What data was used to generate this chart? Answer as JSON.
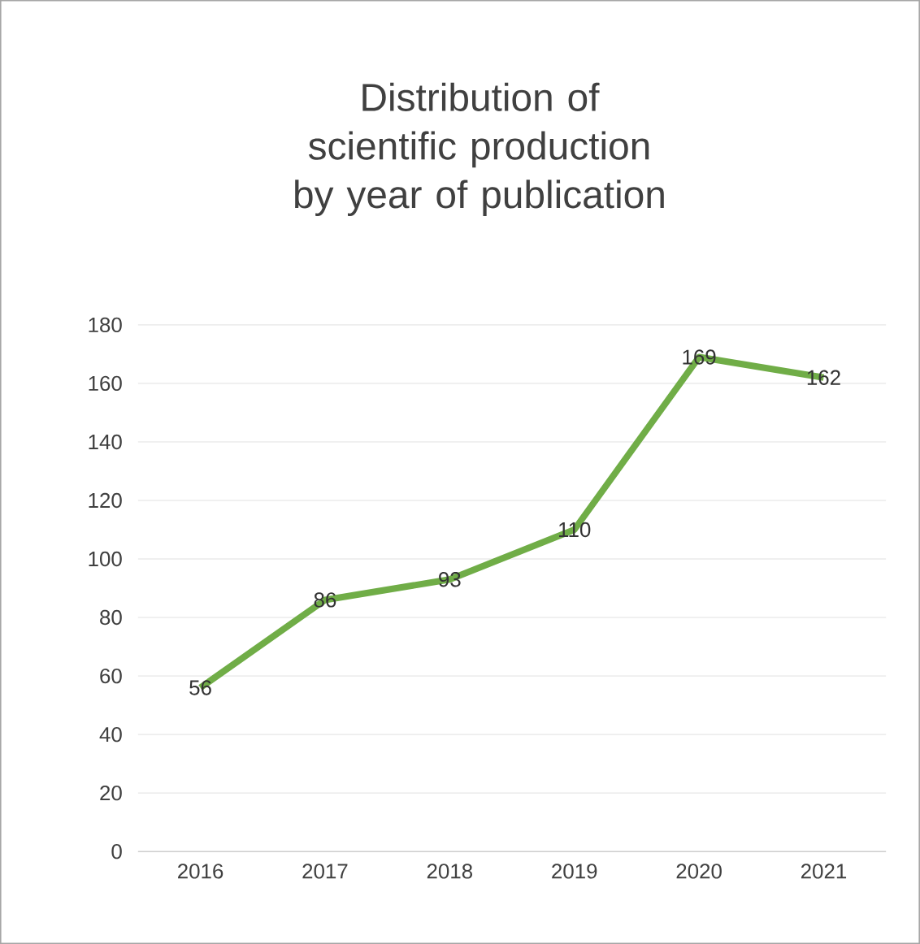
{
  "chart_data": {
    "type": "line",
    "title": "Distribution of scientific production by year of publication",
    "categories": [
      "2016",
      "2017",
      "2018",
      "2019",
      "2020",
      "2021"
    ],
    "values": [
      56,
      86,
      93,
      110,
      169,
      162
    ],
    "color": "#70ad47",
    "ylim": [
      0,
      180
    ],
    "yticks": [
      0,
      20,
      40,
      60,
      80,
      100,
      120,
      140,
      160,
      180
    ],
    "grid": "y",
    "data_labels": true,
    "marker": "none",
    "line_style": "solid"
  }
}
